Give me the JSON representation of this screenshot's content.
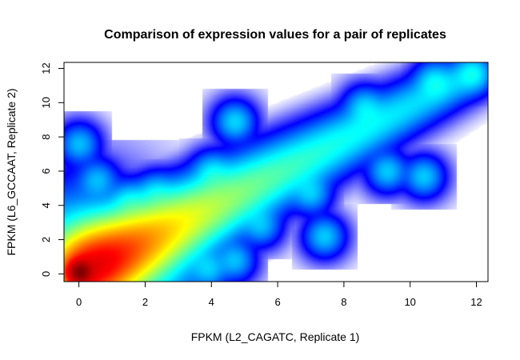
{
  "chart_data": {
    "type": "heatmap",
    "title": "Comparison of expression values for a pair of replicates",
    "xlabel": "FPKM (L2_CAGATC, Replicate 1)",
    "ylabel": "FPKM (L6_GCCAAT, Replicate 2)",
    "xlim": [
      -0.45,
      12.35
    ],
    "ylim": [
      -0.45,
      12.35
    ],
    "x_ticks": [
      0,
      2,
      4,
      6,
      8,
      10,
      12
    ],
    "y_ticks": [
      0,
      2,
      4,
      6,
      8,
      10,
      12
    ],
    "x_tick_labels": [
      "0",
      "2",
      "4",
      "6",
      "8",
      "10",
      "12"
    ],
    "y_tick_labels": [
      "0",
      "2",
      "4",
      "6",
      "8",
      "10",
      "12"
    ],
    "grid": false,
    "legend": "none",
    "color_scale": [
      "#ffffff",
      "#0000ff",
      "#00ffff",
      "#ffff00",
      "#ff0000",
      "#7f0000"
    ],
    "main_trend": {
      "from": [
        0.0,
        0.0
      ],
      "to": [
        12.0,
        11.8
      ],
      "relative_density": "decreasing with FPKM"
    },
    "peak": {
      "x": 0.0,
      "y": 0.1,
      "relative_density": 1.0
    },
    "density_clusters": [
      {
        "x": 0.0,
        "y": 7.6,
        "relative_density": 0.08
      },
      {
        "x": 0.55,
        "y": 5.5,
        "relative_density": 0.07
      },
      {
        "x": 1.5,
        "y": 4.3,
        "relative_density": 0.08
      },
      {
        "x": 2.3,
        "y": 4.8,
        "relative_density": 0.07
      },
      {
        "x": 4.0,
        "y": 6.0,
        "relative_density": 0.08
      },
      {
        "x": 4.7,
        "y": 8.9,
        "relative_density": 0.1
      },
      {
        "x": 3.9,
        "y": 0.3,
        "relative_density": 0.08
      },
      {
        "x": 4.7,
        "y": 0.8,
        "relative_density": 0.08
      },
      {
        "x": 5.5,
        "y": 2.8,
        "relative_density": 0.07
      },
      {
        "x": 7.0,
        "y": 4.7,
        "relative_density": 0.08
      },
      {
        "x": 7.4,
        "y": 2.2,
        "relative_density": 0.09
      },
      {
        "x": 9.3,
        "y": 6.0,
        "relative_density": 0.09
      },
      {
        "x": 10.4,
        "y": 5.7,
        "relative_density": 0.09
      },
      {
        "x": 8.6,
        "y": 9.8,
        "relative_density": 0.08
      },
      {
        "x": 10.7,
        "y": 11.3,
        "relative_density": 0.09
      },
      {
        "x": 11.9,
        "y": 11.7,
        "relative_density": 0.1
      }
    ]
  }
}
